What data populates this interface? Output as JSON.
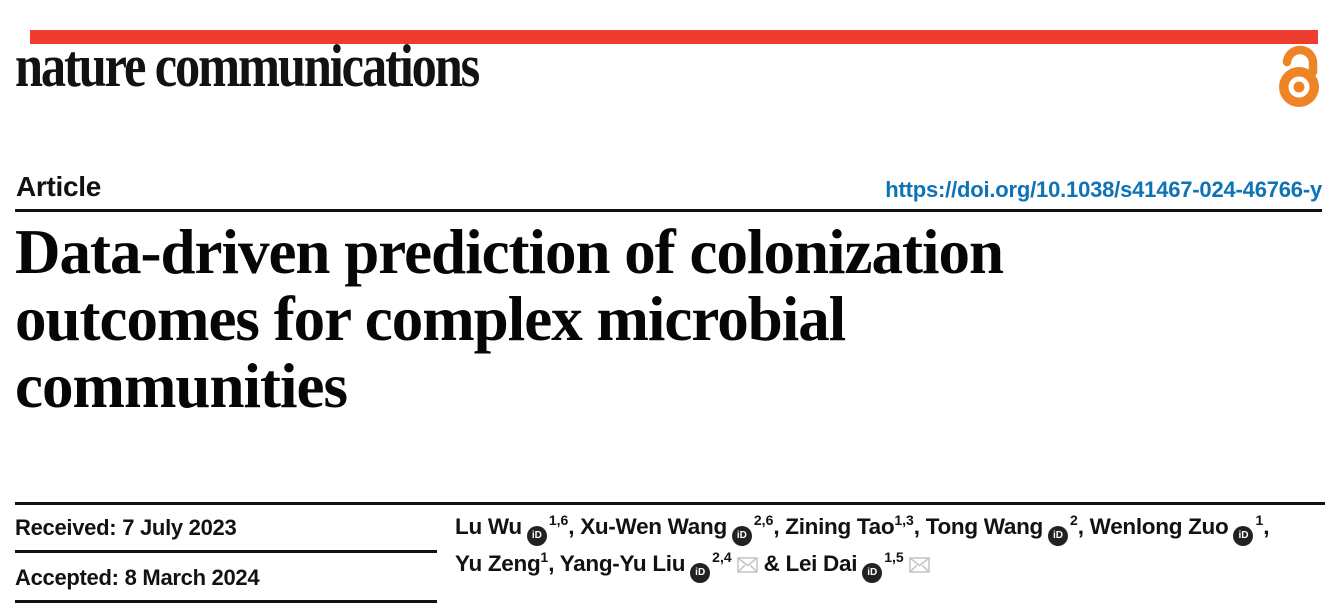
{
  "masthead": {
    "journal": "nature communications",
    "brand_bar_color": "#ee3d2e",
    "open_access_icon_color": "#ef8426"
  },
  "article_header": {
    "type_label": "Article",
    "doi": "https://doi.org/10.1038/s41467-024-46766-y",
    "doi_color": "#0e73b5"
  },
  "title": {
    "line1": "Data-driven prediction of colonization",
    "line2": "outcomes for complex microbial",
    "line3": "communities"
  },
  "dates": {
    "received": {
      "label": "Received:",
      "value": "7 July 2023"
    },
    "accepted": {
      "label": "Accepted:",
      "value": "8 March 2024"
    }
  },
  "authors": {
    "orcid_icon_text": "iD",
    "list": [
      {
        "name": "Lu Wu",
        "orcid": true,
        "sup": "1,6",
        "email": false,
        "sep": ", ",
        "break_after": false
      },
      {
        "name": "Xu-Wen Wang",
        "orcid": true,
        "sup": "2,6",
        "email": false,
        "sep": ", ",
        "break_after": false
      },
      {
        "name": "Zining Tao",
        "orcid": false,
        "sup": "1,3",
        "email": false,
        "sep": ", ",
        "break_after": false
      },
      {
        "name": "Tong Wang",
        "orcid": true,
        "sup": "2",
        "email": false,
        "sep": ", ",
        "break_after": false
      },
      {
        "name": "Wenlong Zuo",
        "orcid": true,
        "sup": "1",
        "email": false,
        "sep": ",",
        "break_after": true
      },
      {
        "name": "Yu Zeng",
        "orcid": false,
        "sup": "1",
        "email": false,
        "sep": ", ",
        "break_after": false
      },
      {
        "name": "Yang-Yu Liu",
        "orcid": true,
        "sup": "2,4",
        "email": true,
        "sep": " & ",
        "break_after": false
      },
      {
        "name": "Lei Dai",
        "orcid": true,
        "sup": "1,5",
        "email": true,
        "sep": "",
        "break_after": false
      }
    ]
  }
}
